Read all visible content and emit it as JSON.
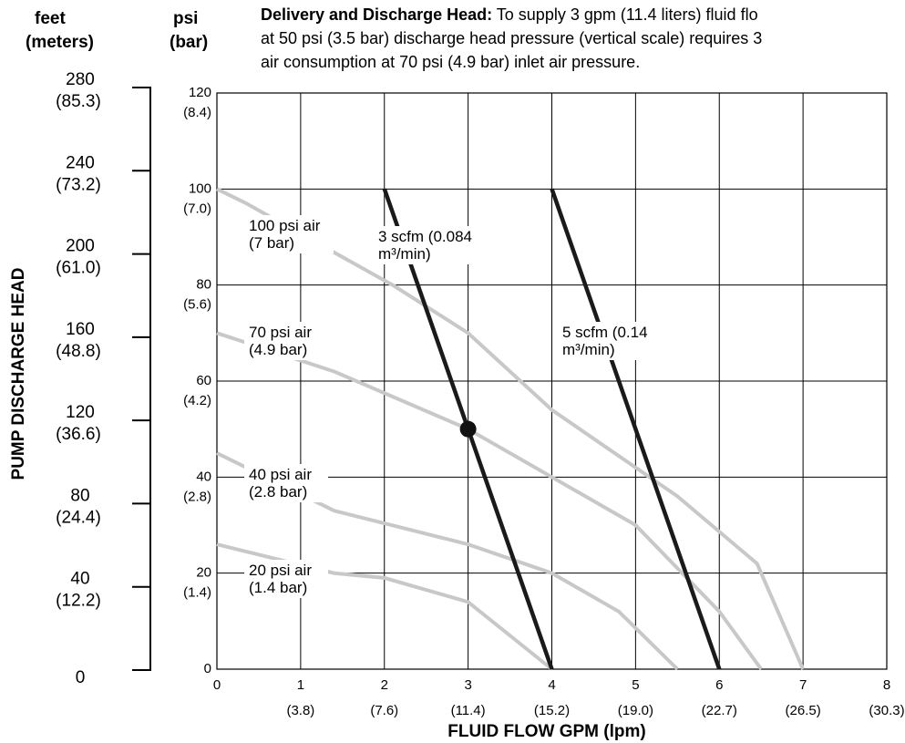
{
  "header": {
    "feet_unit": [
      "feet",
      "(meters)"
    ],
    "psi_unit": [
      "psi",
      "(bar)"
    ],
    "title_bold": "Delivery and Discharge Head:",
    "title_rest_line1": " To supply 3 gpm (11.4 liters) fluid flo",
    "title_line2": "at 50 psi (3.5 bar) discharge head pressure (vertical scale) requires 3",
    "title_line3": "air consumption at 70 psi (4.9 bar) inlet air pressure."
  },
  "colors": {
    "air_curve": "#c8c8c8",
    "scfm_line": "#1a1a1a",
    "grid": "#000000"
  },
  "chart_data": {
    "type": "line",
    "xlabel": "FLUID FLOW GPM (lpm)",
    "ylabel": "PUMP DISCHARGE HEAD",
    "xlim": [
      0,
      8
    ],
    "ylim": [
      0,
      120
    ],
    "grid": true,
    "x_ticks": [
      "0",
      "1",
      "2",
      "3",
      "4",
      "5",
      "6",
      "7",
      "8"
    ],
    "x_ticks_lpm": [
      "",
      "(3.8)",
      "(7.6)",
      "(11.4)",
      "(15.2)",
      "(19.0)",
      "(22.7)",
      "(26.5)",
      "(30.3)"
    ],
    "y_ticks_psi": [
      {
        "value": 120,
        "psi": "120",
        "bar": "(8.4)"
      },
      {
        "value": 100,
        "psi": "100",
        "bar": "(7.0)"
      },
      {
        "value": 80,
        "psi": "80",
        "bar": "(5.6)"
      },
      {
        "value": 60,
        "psi": "60",
        "bar": "(4.2)"
      },
      {
        "value": 40,
        "psi": "40",
        "bar": "(2.8)"
      },
      {
        "value": 20,
        "psi": "20",
        "bar": "(1.4)"
      },
      {
        "value": 0,
        "psi": "0",
        "bar": ""
      }
    ],
    "y_ticks_feet": [
      {
        "value": 280,
        "feet": "280",
        "meters": "(85.3)"
      },
      {
        "value": 240,
        "feet": "240",
        "meters": "(73.2)"
      },
      {
        "value": 200,
        "feet": "200",
        "meters": "(61.0)"
      },
      {
        "value": 160,
        "feet": "160",
        "meters": "(48.8)"
      },
      {
        "value": 120,
        "feet": "120",
        "meters": "(36.6)"
      },
      {
        "value": 80,
        "feet": "80",
        "meters": "(24.4)"
      },
      {
        "value": 40,
        "feet": "40",
        "meters": "(12.2)"
      },
      {
        "value": 0,
        "feet": "0",
        "meters": ""
      }
    ],
    "series": [
      {
        "kind": "air",
        "label": [
          "100 psi air",
          "(7 bar)"
        ],
        "points": [
          [
            0,
            100
          ],
          [
            0.35,
            97
          ],
          [
            2.1,
            80
          ],
          [
            3.0,
            70
          ],
          [
            4.0,
            54
          ],
          [
            5.5,
            36
          ],
          [
            6.45,
            22
          ],
          [
            7.0,
            0
          ]
        ]
      },
      {
        "kind": "air",
        "label": [
          "70 psi air",
          "(4.9 bar)"
        ],
        "points": [
          [
            0,
            70
          ],
          [
            1.4,
            62
          ],
          [
            3.0,
            50
          ],
          [
            4.0,
            40
          ],
          [
            5.0,
            30
          ],
          [
            6.0,
            12
          ],
          [
            6.5,
            0
          ]
        ]
      },
      {
        "kind": "air",
        "label": [
          "40 psi air",
          "(2.8 bar)"
        ],
        "points": [
          [
            0,
            45
          ],
          [
            1.4,
            33
          ],
          [
            3.0,
            26
          ],
          [
            4.0,
            20
          ],
          [
            4.8,
            12
          ],
          [
            5.5,
            0
          ]
        ]
      },
      {
        "kind": "air",
        "label": [
          "20 psi air",
          "(1.4 bar)"
        ],
        "points": [
          [
            0,
            26
          ],
          [
            1.4,
            20
          ],
          [
            2.0,
            19
          ],
          [
            3.0,
            14
          ],
          [
            4.0,
            0
          ]
        ]
      },
      {
        "kind": "scfm",
        "label": [
          "3 scfm (0.084",
          "m³/min)"
        ],
        "points": [
          [
            2.0,
            100
          ],
          [
            4.0,
            0
          ]
        ]
      },
      {
        "kind": "scfm",
        "label": [
          "5 scfm (0.14",
          "m³/min)"
        ],
        "points": [
          [
            4.0,
            100
          ],
          [
            6.0,
            0
          ]
        ]
      }
    ],
    "marker": {
      "x": 3.0,
      "y": 50
    }
  }
}
